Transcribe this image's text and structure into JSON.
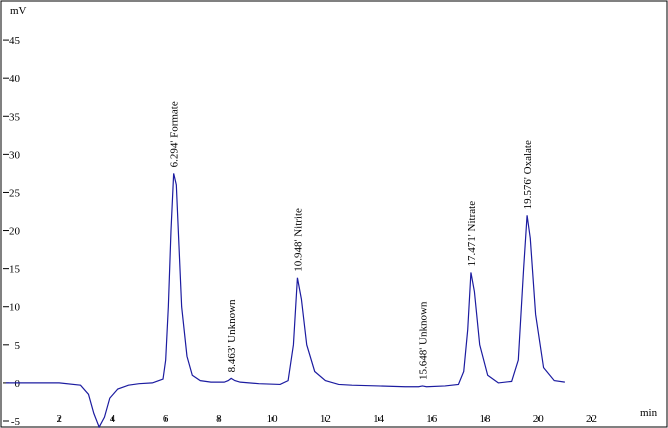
{
  "chart_data": {
    "type": "line",
    "y_axis_label": "mV",
    "x_axis_label": "min",
    "xlim": [
      0,
      24.8
    ],
    "ylim": [
      -5,
      50
    ],
    "xticks": [
      2,
      4,
      6,
      8,
      10,
      12,
      14,
      16,
      18,
      20,
      22
    ],
    "yticks": [
      -5,
      0,
      5,
      10,
      15,
      20,
      25,
      30,
      35,
      40,
      45
    ],
    "grid": false,
    "series": [
      {
        "color": "#1c1ca0",
        "x": [
          0,
          1,
          2,
          2.8,
          3.1,
          3.3,
          3.5,
          3.7,
          3.9,
          4.2,
          4.6,
          5,
          5.5,
          5.9,
          6.0,
          6.1,
          6.2,
          6.3,
          6.4,
          6.5,
          6.6,
          6.8,
          7.0,
          7.3,
          7.7,
          8.2,
          8.35,
          8.46,
          8.6,
          8.8,
          9.5,
          10.3,
          10.6,
          10.8,
          10.95,
          11.1,
          11.3,
          11.6,
          12.0,
          12.5,
          13,
          14,
          15,
          15.5,
          15.65,
          15.8,
          16.5,
          17.0,
          17.2,
          17.35,
          17.47,
          17.6,
          17.8,
          18.1,
          18.5,
          19.0,
          19.25,
          19.45,
          19.58,
          19.7,
          19.9,
          20.2,
          20.6,
          21.0
        ],
        "values": [
          0,
          0,
          0,
          -0.3,
          -1.5,
          -4,
          -5.8,
          -4.5,
          -2,
          -0.8,
          -0.3,
          -0.1,
          0,
          0.5,
          3,
          10,
          20,
          27.5,
          26,
          18,
          10,
          3.5,
          1,
          0.3,
          0.1,
          0.1,
          0.3,
          0.6,
          0.3,
          0.1,
          -0.1,
          -0.2,
          0.3,
          5,
          13.8,
          11,
          5,
          1.5,
          0.3,
          -0.2,
          -0.3,
          -0.4,
          -0.5,
          -0.5,
          -0.4,
          -0.5,
          -0.4,
          -0.2,
          1.5,
          7,
          14.5,
          12,
          5,
          1,
          0,
          0.2,
          3,
          15,
          22,
          19,
          9,
          2,
          0.3,
          0.1
        ]
      }
    ],
    "peaks": [
      {
        "time": 6.294,
        "label": "6.294'  Formate"
      },
      {
        "time": 8.463,
        "label": "8.463'  Unknown"
      },
      {
        "time": 10.948,
        "label": "10.948'  Nitrite"
      },
      {
        "time": 15.648,
        "label": "15.648'  Unknown"
      },
      {
        "time": 17.471,
        "label": "17.471'  Nitrate"
      },
      {
        "time": 19.576,
        "label": "19.576'  Oxalate"
      }
    ]
  }
}
